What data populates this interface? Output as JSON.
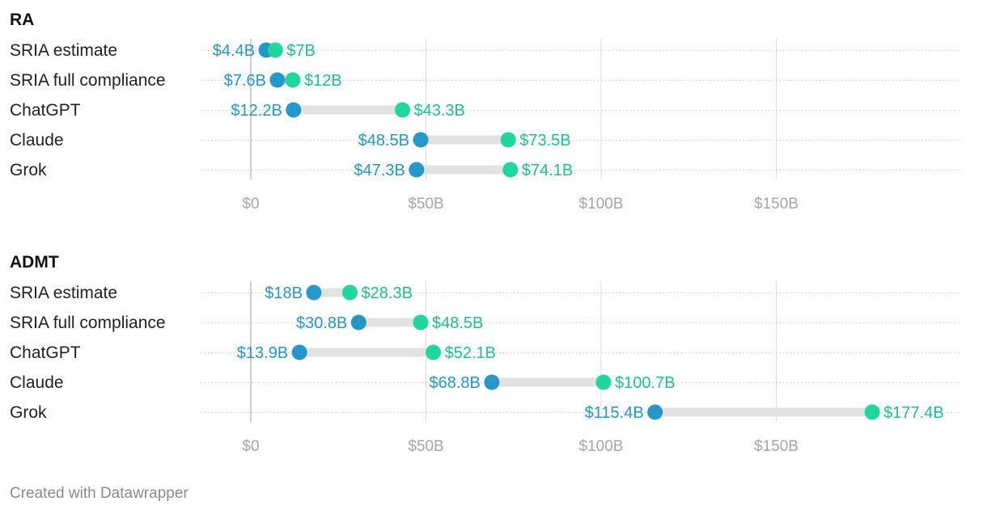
{
  "colors": {
    "low": "#2597c9",
    "high": "#1fd69e",
    "low_label": "#2597c9",
    "high_label": "#1fbf8e",
    "range_bar": "#e2e2e2",
    "grid": "#dcdcdc",
    "zero_line": "#c4c4c4"
  },
  "chart_data": [
    {
      "type": "range-dot",
      "title": "RA",
      "categories": [
        "SRIA estimate",
        "SRIA full compliance",
        "ChatGPT",
        "Claude",
        "Grok"
      ],
      "series": [
        {
          "values": [
            4.4,
            7.6,
            12.2,
            48.5,
            47.3
          ]
        },
        {
          "values": [
            7,
            12,
            43.3,
            73.5,
            74.1
          ]
        }
      ],
      "low_labels": [
        "$4.4B",
        "$7.6B",
        "$12.2B",
        "$48.5B",
        "$47.3B"
      ],
      "high_labels": [
        "$7B",
        "$12B",
        "$43.3B",
        "$73.5B",
        "$74.1B"
      ],
      "ticks": [
        0,
        50,
        100,
        150
      ],
      "tick_labels": [
        "$0",
        "$50B",
        "$100B",
        "$150B"
      ],
      "xlim": [
        0,
        180
      ]
    },
    {
      "type": "range-dot",
      "title": "ADMT",
      "categories": [
        "SRIA estimate",
        "SRIA full compliance",
        "ChatGPT",
        "Claude",
        "Grok"
      ],
      "series": [
        {
          "values": [
            18,
            30.8,
            13.9,
            68.8,
            115.4
          ]
        },
        {
          "values": [
            28.3,
            48.5,
            52.1,
            100.7,
            177.4
          ]
        }
      ],
      "low_labels": [
        "$18B",
        "$30.8B",
        "$13.9B",
        "$68.8B",
        "$115.4B"
      ],
      "high_labels": [
        "$28.3B",
        "$48.5B",
        "$52.1B",
        "$100.7B",
        "$177.4B"
      ],
      "ticks": [
        0,
        50,
        100,
        150
      ],
      "tick_labels": [
        "$0",
        "$50B",
        "$100B",
        "$150B"
      ],
      "xlim": [
        0,
        180
      ]
    }
  ],
  "footer": "Created with Datawrapper"
}
